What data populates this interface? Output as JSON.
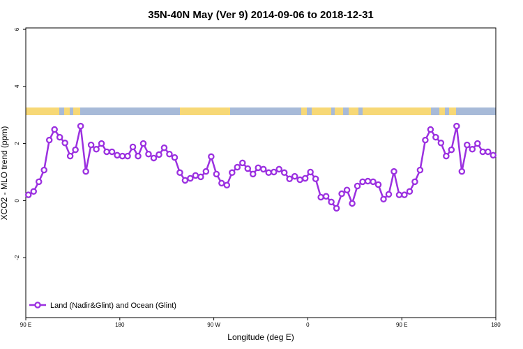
{
  "chart_data": {
    "type": "line",
    "title": "35N-40N May (Ver 9)   2014-09-06 to 2018-12-31",
    "x_label": "Longitude (deg E)",
    "y_label": "XCO2 - MLO trend (ppm)",
    "x": [
      92.5,
      97.5,
      102.5,
      107.5,
      112.5,
      117.5,
      122.5,
      127.5,
      132.5,
      137.5,
      142.5,
      147.5,
      152.5,
      157.5,
      162.5,
      167.5,
      172.5,
      177.5,
      182.5,
      187.5,
      192.5,
      197.5,
      202.5,
      207.5,
      212.5,
      217.5,
      222.5,
      227.5,
      232.5,
      237.5,
      242.5,
      247.5,
      252.5,
      257.5,
      262.5,
      267.5,
      272.5,
      277.5,
      282.5,
      287.5,
      292.5,
      297.5,
      302.5,
      307.5,
      312.5,
      317.5,
      322.5,
      327.5,
      332.5,
      337.5,
      342.5,
      347.5,
      352.5,
      357.5,
      362.5,
      367.5,
      372.5,
      377.5,
      382.5,
      387.5,
      392.5,
      397.5,
      402.5,
      407.5,
      412.5,
      417.5,
      422.5,
      427.5,
      432.5,
      437.5,
      442.5,
      447.5,
      452.5,
      457.5,
      462.5,
      467.5,
      472.5,
      477.5,
      482.5,
      487.5,
      492.5,
      497.5,
      502.5,
      507.5,
      512.5,
      517.5,
      522.5,
      527.5,
      532.5,
      537.5
    ],
    "series": [
      {
        "name": "Land (Nadir&Glint) and Ocean (Glint)",
        "color": "#9b30e0",
        "values": [
          0.2,
          0.32,
          0.66,
          1.07,
          2.12,
          2.49,
          2.22,
          2.02,
          1.56,
          1.78,
          2.61,
          1.02,
          1.95,
          1.8,
          2.0,
          1.71,
          1.71,
          1.59,
          1.56,
          1.56,
          1.88,
          1.56,
          2.0,
          1.63,
          1.49,
          1.61,
          1.85,
          1.63,
          1.51,
          0.98,
          0.71,
          0.78,
          0.88,
          0.83,
          1.02,
          1.54,
          0.93,
          0.61,
          0.54,
          0.98,
          1.17,
          1.32,
          1.12,
          0.93,
          1.15,
          1.1,
          0.98,
          1.0,
          1.1,
          0.98,
          0.76,
          0.85,
          0.73,
          0.78,
          1.0,
          0.76,
          0.12,
          0.15,
          -0.05,
          -0.27,
          0.24,
          0.37,
          -0.1,
          0.51,
          0.66,
          0.68,
          0.66,
          0.56,
          0.05,
          0.22,
          1.02,
          0.2,
          0.2,
          0.32,
          0.66,
          1.07,
          2.12,
          2.49,
          2.22,
          2.02,
          1.56,
          1.78,
          2.61,
          1.02,
          1.95,
          1.8,
          2.0,
          1.71,
          1.71,
          1.59
        ]
      }
    ],
    "xlim": [
      90,
      540
    ],
    "xticks": [
      {
        "value": 90,
        "label": "90 E"
      },
      180,
      {
        "value": 270,
        "label": "90 W"
      },
      {
        "value": 360,
        "label": "0"
      },
      {
        "value": 450,
        "label": "90 E"
      },
      {
        "value": 540,
        "label": "180"
      }
    ],
    "ylim": [
      -4.1,
      6.05
    ],
    "yticks": [
      -2,
      0,
      2,
      4,
      6
    ],
    "legend": "bottom-left"
  }
}
